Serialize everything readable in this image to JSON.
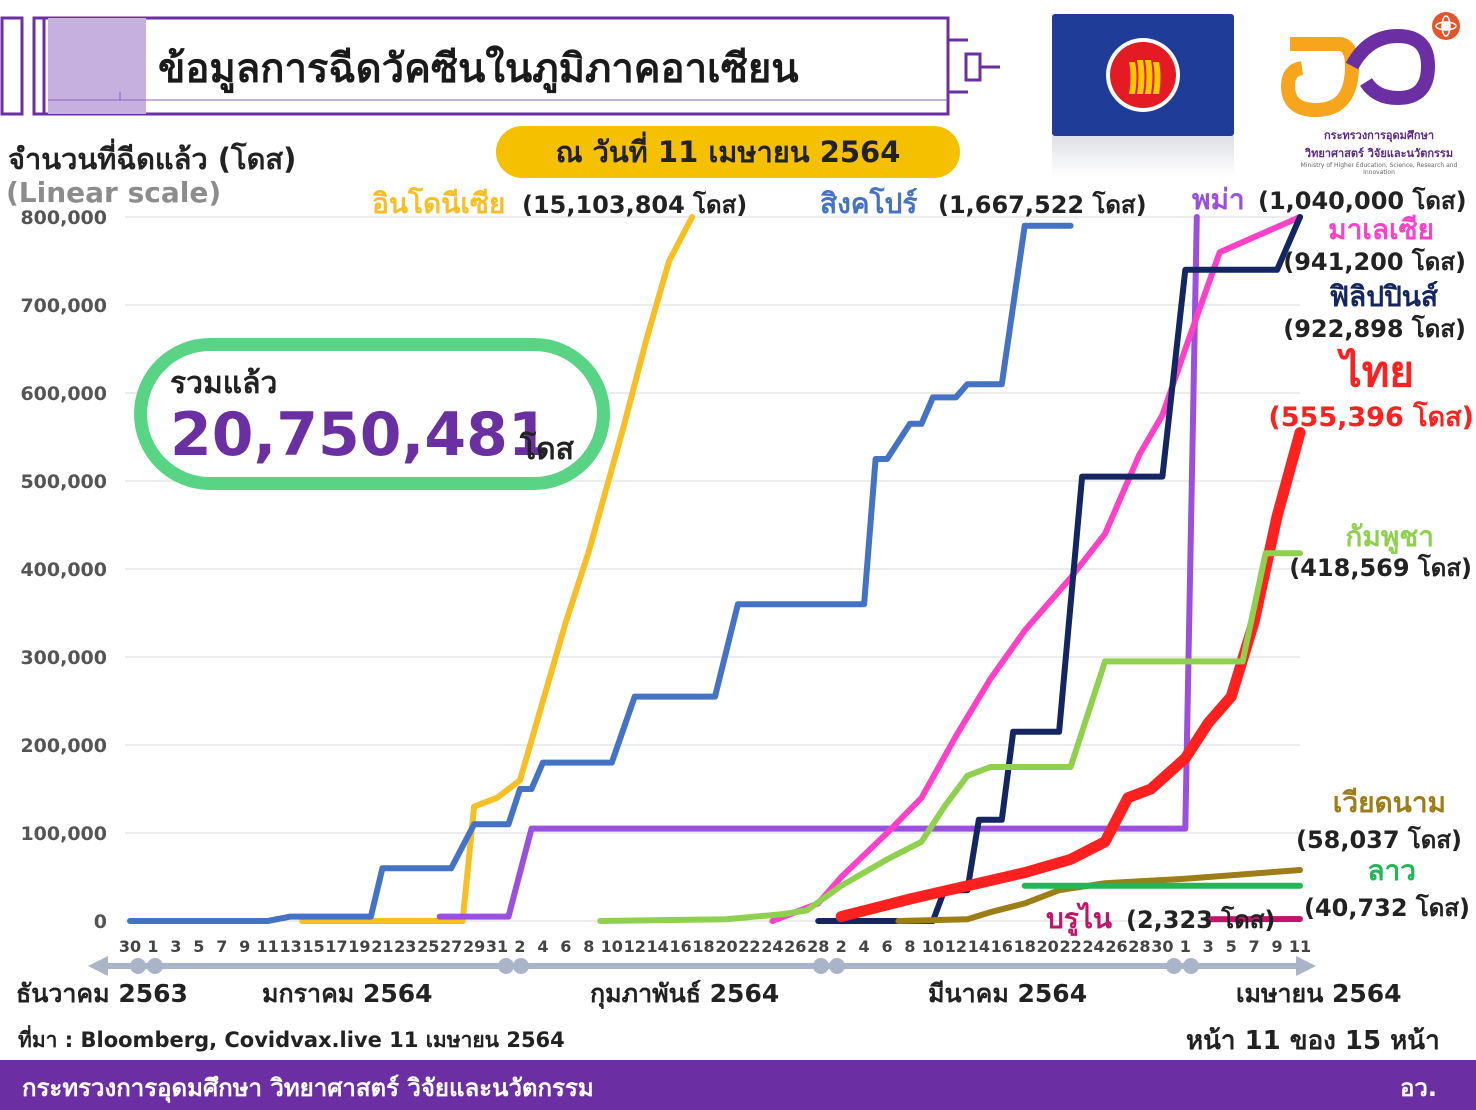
{
  "header": {
    "title": "ข้อมูลการฉีดวัคซีนในภูมิภาคอาเซียน",
    "date_pill": "ณ วันที่ 11 เมษายน 2564"
  },
  "logo": {
    "line1": "กระทรวงการอุดมศึกษา",
    "line2": "วิทยาศาสตร์ วิจัยและนวัตกรรม",
    "line3": "Ministry of Higher Education, Science, Research and Innovation"
  },
  "axis": {
    "ylabel": "จำนวนที่ฉีดแล้ว (โดส)",
    "scale": "(Linear scale)",
    "yticks": [
      "800,000",
      "700,000",
      "600,000",
      "500,000",
      "400,000",
      "300,000",
      "200,000",
      "100,000",
      "0"
    ]
  },
  "total": {
    "label": "รวมแล้ว",
    "value": "20,750,481",
    "unit": "โดส"
  },
  "chart_data": {
    "type": "line",
    "ylim": [
      0,
      800000
    ],
    "grid": true,
    "x_day_labels": [
      "30",
      "1",
      "3",
      "5",
      "7",
      "9",
      "11",
      "13",
      "15",
      "17",
      "19",
      "21",
      "23",
      "25",
      "27",
      "29",
      "31",
      "2",
      "4",
      "6",
      "8",
      "10",
      "12",
      "14",
      "16",
      "18",
      "20",
      "22",
      "24",
      "26",
      "28",
      "2",
      "4",
      "6",
      "8",
      "10",
      "12",
      "14",
      "16",
      "18",
      "20",
      "22",
      "24",
      "26",
      "28",
      "30",
      "1",
      "3",
      "5",
      "7",
      "9",
      "11"
    ],
    "x_months": [
      "ธันวาคม 2563",
      "มกราคม 2564",
      "กุมภาพันธ์ 2564",
      "มีนาคม 2564",
      "เมษายน 2564"
    ],
    "series": [
      {
        "name": "อินโดนีเซีย",
        "total": "(15,103,804 โดส)",
        "color": "#f7bf25",
        "points": [
          [
            "2021-01-14",
            0
          ],
          [
            "2021-01-28",
            0
          ],
          [
            "2021-01-29",
            130000
          ],
          [
            "2021-01-31",
            140000
          ],
          [
            "2021-02-02",
            160000
          ],
          [
            "2021-02-04",
            250000
          ],
          [
            "2021-02-06",
            340000
          ],
          [
            "2021-02-08",
            420000
          ],
          [
            "2021-02-11",
            560000
          ],
          [
            "2021-02-13",
            660000
          ],
          [
            "2021-02-15",
            750000
          ],
          [
            "2021-02-17",
            800000
          ]
        ]
      },
      {
        "name": "สิงคโปร์",
        "total": "(1,667,522 โดส)",
        "color": "#4472c4",
        "points": [
          [
            "2020-12-30",
            0
          ],
          [
            "2021-01-11",
            0
          ],
          [
            "2021-01-13",
            5000
          ],
          [
            "2021-01-20",
            5000
          ],
          [
            "2021-01-21",
            60000
          ],
          [
            "2021-01-27",
            60000
          ],
          [
            "2021-01-29",
            110000
          ],
          [
            "2021-02-01",
            110000
          ],
          [
            "2021-02-02",
            150000
          ],
          [
            "2021-02-03",
            150000
          ],
          [
            "2021-02-04",
            180000
          ],
          [
            "2021-02-10",
            180000
          ],
          [
            "2021-02-12",
            255000
          ],
          [
            "2021-02-19",
            255000
          ],
          [
            "2021-02-21",
            360000
          ],
          [
            "2021-03-04",
            360000
          ],
          [
            "2021-03-05",
            525000
          ],
          [
            "2021-03-06",
            525000
          ],
          [
            "2021-03-08",
            565000
          ],
          [
            "2021-03-09",
            565000
          ],
          [
            "2021-03-10",
            595000
          ],
          [
            "2021-03-12",
            595000
          ],
          [
            "2021-03-13",
            610000
          ],
          [
            "2021-03-16",
            610000
          ],
          [
            "2021-03-18",
            790000
          ],
          [
            "2021-03-22",
            790000
          ]
        ]
      },
      {
        "name": "พม่า",
        "total": "(1,040,000 โดส)",
        "color": "#9b4fdf",
        "points": [
          [
            "2021-01-26",
            5000
          ],
          [
            "2021-02-01",
            5000
          ],
          [
            "2021-02-03",
            105000
          ],
          [
            "2021-03-01",
            105000
          ],
          [
            "2021-04-01",
            105000
          ],
          [
            "2021-04-02",
            800000
          ]
        ]
      },
      {
        "name": "มาเลเซีย",
        "total": "(941,200 โดส)",
        "color": "#ff40c8",
        "points": [
          [
            "2021-02-24",
            0
          ],
          [
            "2021-02-28",
            20000
          ],
          [
            "2021-03-02",
            50000
          ],
          [
            "2021-03-06",
            100000
          ],
          [
            "2021-03-09",
            140000
          ],
          [
            "2021-03-12",
            210000
          ],
          [
            "2021-03-15",
            275000
          ],
          [
            "2021-03-18",
            330000
          ],
          [
            "2021-03-22",
            390000
          ],
          [
            "2021-03-25",
            440000
          ],
          [
            "2021-03-28",
            530000
          ],
          [
            "2021-03-30",
            575000
          ],
          [
            "2021-04-01",
            650000
          ],
          [
            "2021-04-04",
            760000
          ],
          [
            "2021-04-11",
            800000
          ]
        ]
      },
      {
        "name": "ฟิลิปปินส์",
        "total": "(922,898 โดส)",
        "color": "#132661",
        "points": [
          [
            "2021-02-28",
            0
          ],
          [
            "2021-03-10",
            0
          ],
          [
            "2021-03-11",
            35000
          ],
          [
            "2021-03-13",
            35000
          ],
          [
            "2021-03-14",
            115000
          ],
          [
            "2021-03-16",
            115000
          ],
          [
            "2021-03-17",
            215000
          ],
          [
            "2021-03-21",
            215000
          ],
          [
            "2021-03-23",
            505000
          ],
          [
            "2021-03-30",
            505000
          ],
          [
            "2021-04-01",
            740000
          ],
          [
            "2021-04-09",
            740000
          ],
          [
            "2021-04-11",
            800000
          ]
        ]
      },
      {
        "name": "ไทย",
        "total": "(555,396 โดส)",
        "color": "#ff2020",
        "points": [
          [
            "2021-03-02",
            5000
          ],
          [
            "2021-03-08",
            25000
          ],
          [
            "2021-03-13",
            40000
          ],
          [
            "2021-03-18",
            55000
          ],
          [
            "2021-03-22",
            70000
          ],
          [
            "2021-03-25",
            90000
          ],
          [
            "2021-03-27",
            140000
          ],
          [
            "2021-03-29",
            150000
          ],
          [
            "2021-04-01",
            185000
          ],
          [
            "2021-04-03",
            225000
          ],
          [
            "2021-04-05",
            255000
          ],
          [
            "2021-04-07",
            340000
          ],
          [
            "2021-04-09",
            460000
          ],
          [
            "2021-04-11",
            555000
          ]
        ]
      },
      {
        "name": "กัมพูชา",
        "total": "(418,569 โดส)",
        "color": "#8fd14f",
        "points": [
          [
            "2021-02-09",
            0
          ],
          [
            "2021-02-20",
            2000
          ],
          [
            "2021-02-25",
            8000
          ],
          [
            "2021-02-27",
            12000
          ],
          [
            "2021-03-02",
            40000
          ],
          [
            "2021-03-06",
            70000
          ],
          [
            "2021-03-09",
            90000
          ],
          [
            "2021-03-11",
            130000
          ],
          [
            "2021-03-13",
            165000
          ],
          [
            "2021-03-15",
            175000
          ],
          [
            "2021-03-22",
            175000
          ],
          [
            "2021-03-25",
            295000
          ],
          [
            "2021-04-06",
            295000
          ],
          [
            "2021-04-08",
            418000
          ],
          [
            "2021-04-11",
            418000
          ]
        ]
      },
      {
        "name": "เวียดนาม",
        "total": "(58,037 โดส)",
        "color": "#9c7d16",
        "points": [
          [
            "2021-03-07",
            0
          ],
          [
            "2021-03-13",
            2000
          ],
          [
            "2021-03-15",
            10000
          ],
          [
            "2021-03-18",
            20000
          ],
          [
            "2021-03-21",
            35000
          ],
          [
            "2021-03-25",
            43000
          ],
          [
            "2021-04-01",
            48000
          ],
          [
            "2021-04-11",
            58000
          ]
        ]
      },
      {
        "name": "ลาว",
        "total": "(40,732 โดส)",
        "color": "#20b857",
        "points": [
          [
            "2021-03-18",
            40000
          ],
          [
            "2021-04-11",
            40000
          ]
        ]
      },
      {
        "name": "บรูไน",
        "total": "(2,323 โดส)",
        "color": "#c0156a",
        "points": [
          [
            "2021-04-03",
            2000
          ],
          [
            "2021-04-11",
            2323
          ]
        ]
      }
    ]
  },
  "source": "ที่มา : Bloomberg, Covidvax.live 11 เมษายน 2564",
  "page": "หน้า 11 ของ 15 หน้า",
  "footer": {
    "org": "กระทรวงการอุดมศึกษา วิทยาศาสตร์ วิจัยและนวัตกรรม",
    "abbr": "อว."
  }
}
